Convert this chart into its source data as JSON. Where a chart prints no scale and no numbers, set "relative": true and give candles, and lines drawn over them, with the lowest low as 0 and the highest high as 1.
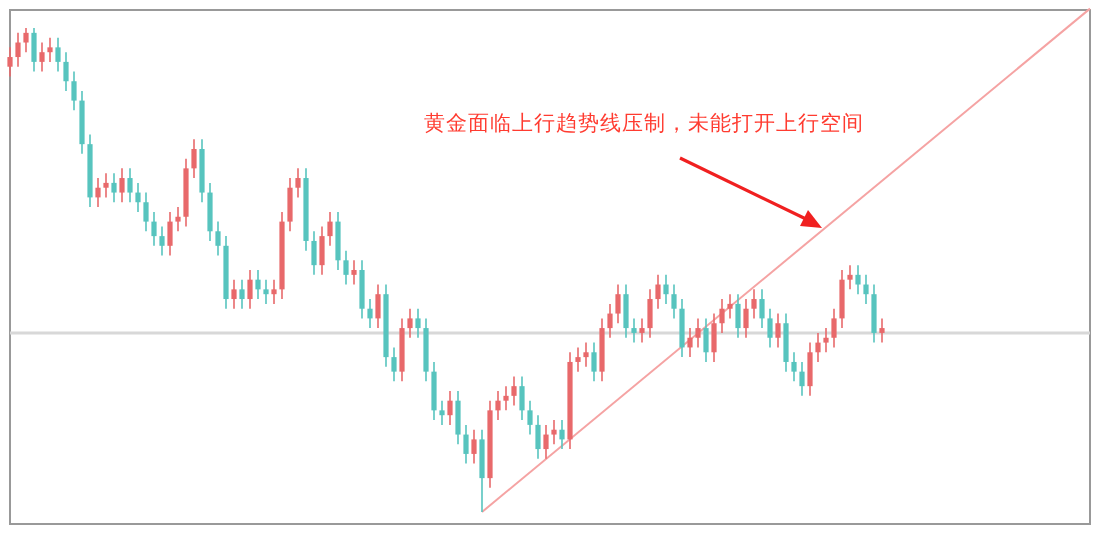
{
  "chart_data": {
    "type": "candlestick",
    "relative": true,
    "categories": [
      null,
      null,
      null,
      null,
      null,
      null,
      null,
      null,
      null,
      null,
      null,
      null,
      null,
      null,
      null,
      null,
      null,
      null,
      null,
      null,
      null,
      null,
      null,
      null,
      null,
      null,
      null,
      null,
      null,
      null,
      null,
      null,
      null,
      null,
      null,
      null,
      null,
      null,
      null,
      null,
      null,
      null,
      null,
      null,
      null,
      null,
      null,
      null,
      null,
      null,
      null,
      null,
      null,
      null,
      null,
      null,
      null,
      null,
      null,
      null,
      null,
      null,
      null,
      null,
      null,
      null,
      null,
      null,
      null,
      null,
      null,
      null,
      null,
      null,
      null,
      null,
      null,
      null,
      null,
      null,
      null,
      null,
      null,
      null,
      null,
      null,
      null,
      null,
      null,
      null,
      null,
      null,
      null,
      null,
      null,
      null,
      null,
      null,
      null,
      null,
      null,
      null,
      null,
      null,
      null,
      null,
      null,
      null,
      null,
      null,
      null,
      null,
      null,
      null,
      null,
      null,
      null,
      null,
      null,
      null,
      null,
      null,
      null,
      null,
      null,
      null,
      null,
      null,
      null,
      null,
      null,
      null,
      null,
      null,
      null,
      null
    ],
    "ohlc": [
      [
        0.92,
        0.96,
        0.9,
        0.94
      ],
      [
        0.94,
        0.99,
        0.92,
        0.97
      ],
      [
        0.97,
        1,
        0.95,
        0.99
      ],
      [
        0.99,
        1,
        0.91,
        0.93
      ],
      [
        0.93,
        0.97,
        0.91,
        0.95
      ],
      [
        0.95,
        0.98,
        0.93,
        0.96
      ],
      [
        0.96,
        0.98,
        0.91,
        0.93
      ],
      [
        0.93,
        0.95,
        0.87,
        0.89
      ],
      [
        0.89,
        0.91,
        0.83,
        0.85
      ],
      [
        0.85,
        0.87,
        0.74,
        0.76
      ],
      [
        0.76,
        0.78,
        0.63,
        0.65
      ],
      [
        0.65,
        0.69,
        0.63,
        0.67
      ],
      [
        0.67,
        0.7,
        0.65,
        0.68
      ],
      [
        0.68,
        0.7,
        0.64,
        0.66
      ],
      [
        0.66,
        0.71,
        0.64,
        0.69
      ],
      [
        0.69,
        0.71,
        0.64,
        0.66
      ],
      [
        0.66,
        0.68,
        0.62,
        0.64
      ],
      [
        0.64,
        0.66,
        0.58,
        0.6
      ],
      [
        0.6,
        0.62,
        0.55,
        0.57
      ],
      [
        0.57,
        0.59,
        0.53,
        0.55
      ],
      [
        0.55,
        0.62,
        0.53,
        0.6
      ],
      [
        0.6,
        0.63,
        0.58,
        0.61
      ],
      [
        0.61,
        0.73,
        0.59,
        0.71
      ],
      [
        0.71,
        0.77,
        0.69,
        0.75
      ],
      [
        0.75,
        0.77,
        0.64,
        0.66
      ],
      [
        0.66,
        0.68,
        0.56,
        0.58
      ],
      [
        0.58,
        0.6,
        0.53,
        0.55
      ],
      [
        0.55,
        0.57,
        0.42,
        0.44
      ],
      [
        0.44,
        0.48,
        0.42,
        0.46
      ],
      [
        0.46,
        0.48,
        0.42,
        0.44
      ],
      [
        0.44,
        0.5,
        0.42,
        0.48
      ],
      [
        0.48,
        0.5,
        0.44,
        0.46
      ],
      [
        0.46,
        0.48,
        0.43,
        0.45
      ],
      [
        0.45,
        0.48,
        0.43,
        0.46
      ],
      [
        0.46,
        0.62,
        0.44,
        0.6
      ],
      [
        0.6,
        0.69,
        0.58,
        0.67
      ],
      [
        0.67,
        0.71,
        0.65,
        0.69
      ],
      [
        0.69,
        0.71,
        0.54,
        0.56
      ],
      [
        0.56,
        0.58,
        0.49,
        0.51
      ],
      [
        0.51,
        0.59,
        0.49,
        0.57
      ],
      [
        0.57,
        0.62,
        0.55,
        0.6
      ],
      [
        0.6,
        0.62,
        0.5,
        0.52
      ],
      [
        0.52,
        0.54,
        0.47,
        0.49
      ],
      [
        0.49,
        0.52,
        0.47,
        0.5
      ],
      [
        0.5,
        0.52,
        0.4,
        0.42
      ],
      [
        0.42,
        0.44,
        0.38,
        0.4
      ],
      [
        0.4,
        0.47,
        0.38,
        0.45
      ],
      [
        0.45,
        0.47,
        0.3,
        0.32
      ],
      [
        0.32,
        0.34,
        0.27,
        0.29
      ],
      [
        0.29,
        0.4,
        0.27,
        0.38
      ],
      [
        0.38,
        0.42,
        0.36,
        0.4
      ],
      [
        0.4,
        0.42,
        0.36,
        0.38
      ],
      [
        0.38,
        0.4,
        0.27,
        0.29
      ],
      [
        0.29,
        0.31,
        0.19,
        0.21
      ],
      [
        0.21,
        0.23,
        0.18,
        0.2
      ],
      [
        0.2,
        0.25,
        0.18,
        0.23
      ],
      [
        0.23,
        0.25,
        0.14,
        0.16
      ],
      [
        0.16,
        0.18,
        0.1,
        0.12
      ],
      [
        0.12,
        0.17,
        0.1,
        0.15
      ],
      [
        0.15,
        0.17,
        0,
        0.07
      ],
      [
        0.07,
        0.23,
        0.05,
        0.21
      ],
      [
        0.21,
        0.25,
        0.19,
        0.23
      ],
      [
        0.23,
        0.26,
        0.21,
        0.24
      ],
      [
        0.24,
        0.28,
        0.22,
        0.26
      ],
      [
        0.26,
        0.28,
        0.19,
        0.21
      ],
      [
        0.21,
        0.23,
        0.16,
        0.18
      ],
      [
        0.18,
        0.2,
        0.11,
        0.13
      ],
      [
        0.13,
        0.18,
        0.11,
        0.16
      ],
      [
        0.16,
        0.19,
        0.14,
        0.17
      ],
      [
        0.17,
        0.19,
        0.13,
        0.15
      ],
      [
        0.15,
        0.33,
        0.13,
        0.31
      ],
      [
        0.31,
        0.34,
        0.29,
        0.32
      ],
      [
        0.32,
        0.35,
        0.3,
        0.33
      ],
      [
        0.33,
        0.35,
        0.27,
        0.29
      ],
      [
        0.29,
        0.4,
        0.27,
        0.38
      ],
      [
        0.38,
        0.43,
        0.36,
        0.41
      ],
      [
        0.41,
        0.47,
        0.39,
        0.45
      ],
      [
        0.45,
        0.47,
        0.36,
        0.38
      ],
      [
        0.38,
        0.4,
        0.35,
        0.37
      ],
      [
        0.37,
        0.4,
        0.35,
        0.38
      ],
      [
        0.38,
        0.46,
        0.36,
        0.44
      ],
      [
        0.44,
        0.49,
        0.42,
        0.47
      ],
      [
        0.47,
        0.49,
        0.43,
        0.45
      ],
      [
        0.45,
        0.47,
        0.4,
        0.42
      ],
      [
        0.42,
        0.44,
        0.32,
        0.34
      ],
      [
        0.34,
        0.38,
        0.32,
        0.36
      ],
      [
        0.36,
        0.4,
        0.34,
        0.38
      ],
      [
        0.38,
        0.4,
        0.31,
        0.33
      ],
      [
        0.33,
        0.41,
        0.31,
        0.39
      ],
      [
        0.39,
        0.44,
        0.37,
        0.42
      ],
      [
        0.42,
        0.45,
        0.4,
        0.43
      ],
      [
        0.43,
        0.45,
        0.36,
        0.38
      ],
      [
        0.38,
        0.44,
        0.36,
        0.42
      ],
      [
        0.42,
        0.46,
        0.4,
        0.44
      ],
      [
        0.44,
        0.46,
        0.38,
        0.4
      ],
      [
        0.4,
        0.42,
        0.34,
        0.36
      ],
      [
        0.36,
        0.41,
        0.34,
        0.39
      ],
      [
        0.39,
        0.41,
        0.29,
        0.31
      ],
      [
        0.31,
        0.33,
        0.27,
        0.29
      ],
      [
        0.29,
        0.31,
        0.24,
        0.26
      ],
      [
        0.26,
        0.35,
        0.24,
        0.33
      ],
      [
        0.33,
        0.37,
        0.31,
        0.35
      ],
      [
        0.35,
        0.38,
        0.33,
        0.36
      ],
      [
        0.36,
        0.42,
        0.34,
        0.4
      ],
      [
        0.4,
        0.5,
        0.38,
        0.48
      ],
      [
        0.48,
        0.51,
        0.46,
        0.49
      ],
      [
        0.49,
        0.51,
        0.45,
        0.47
      ],
      [
        0.47,
        0.49,
        0.43,
        0.45
      ],
      [
        0.45,
        0.47,
        0.35,
        0.37
      ],
      [
        0.37,
        0.4,
        0.35,
        0.38
      ],
      null,
      null,
      null,
      null,
      null,
      null,
      null,
      null,
      null,
      null,
      null,
      null,
      null,
      null,
      null,
      null,
      null,
      null,
      null,
      null,
      null,
      null,
      null,
      null,
      null,
      null
    ],
    "colors": [
      "#e8696b",
      "#e8696b",
      "#e8696b",
      "#57c4be",
      "#e8696b",
      "#e8696b",
      "#57c4be",
      "#57c4be",
      "#57c4be",
      "#57c4be",
      "#57c4be",
      "#e8696b",
      "#e8696b",
      "#57c4be",
      "#e8696b",
      "#57c4be",
      "#57c4be",
      "#57c4be",
      "#57c4be",
      "#57c4be",
      "#e8696b",
      "#e8696b",
      "#e8696b",
      "#e8696b",
      "#57c4be",
      "#57c4be",
      "#57c4be",
      "#57c4be",
      "#e8696b",
      "#57c4be",
      "#e8696b",
      "#57c4be",
      "#57c4be",
      "#e8696b",
      "#e8696b",
      "#e8696b",
      "#e8696b",
      "#57c4be",
      "#57c4be",
      "#e8696b",
      "#e8696b",
      "#57c4be",
      "#57c4be",
      "#e8696b",
      "#57c4be",
      "#57c4be",
      "#e8696b",
      "#57c4be",
      "#57c4be",
      "#e8696b",
      "#e8696b",
      "#57c4be",
      "#57c4be",
      "#57c4be",
      "#57c4be",
      "#e8696b",
      "#57c4be",
      "#57c4be",
      "#e8696b",
      "#57c4be",
      "#e8696b",
      "#e8696b",
      "#e8696b",
      "#e8696b",
      "#57c4be",
      "#57c4be",
      "#57c4be",
      "#e8696b",
      "#e8696b",
      "#57c4be",
      "#e8696b",
      "#e8696b",
      "#e8696b",
      "#57c4be",
      "#e8696b",
      "#e8696b",
      "#e8696b",
      "#57c4be",
      "#57c4be",
      "#e8696b",
      "#e8696b",
      "#e8696b",
      "#57c4be",
      "#57c4be",
      "#57c4be",
      "#e8696b",
      "#e8696b",
      "#57c4be",
      "#e8696b",
      "#e8696b",
      "#e8696b",
      "#57c4be",
      "#e8696b",
      "#e8696b",
      "#57c4be",
      "#57c4be",
      "#e8696b",
      "#57c4be",
      "#57c4be",
      "#57c4be",
      "#e8696b",
      "#e8696b",
      "#e8696b",
      "#e8696b",
      "#e8696b",
      "#e8696b",
      "#57c4be",
      "#57c4be",
      "#57c4be",
      "#e8696b",
      null,
      null,
      null,
      null,
      null,
      null,
      null,
      null,
      null,
      null,
      null,
      null,
      null,
      null,
      null,
      null,
      null,
      null,
      null,
      null,
      null,
      null,
      null,
      null,
      null,
      null
    ],
    "series": [
      {
        "type": "line",
        "color": "#f5a3a3",
        "values": [
          null,
          null,
          null,
          null,
          null,
          null,
          null,
          null,
          null,
          null,
          null,
          null,
          null,
          null,
          null,
          null,
          null,
          null,
          null,
          null,
          null,
          null,
          null,
          null,
          null,
          null,
          null,
          null,
          null,
          null,
          null,
          null,
          null,
          null,
          null,
          null,
          null,
          null,
          null,
          null,
          null,
          null,
          null,
          null,
          null,
          null,
          null,
          null,
          null,
          null,
          null,
          null,
          null,
          null,
          null,
          null,
          null,
          null,
          null,
          0,
          null,
          null,
          null,
          null,
          null,
          null,
          null,
          null,
          null,
          null,
          null,
          null,
          null,
          null,
          null,
          null,
          null,
          null,
          null,
          null,
          null,
          null,
          null,
          null,
          null,
          null,
          null,
          null,
          null,
          null,
          null,
          null,
          null,
          null,
          null,
          null,
          null,
          null,
          null,
          null,
          null,
          null,
          null,
          null,
          null,
          null,
          null,
          null,
          null,
          null,
          null,
          null,
          null,
          null,
          null,
          null,
          null,
          null,
          null,
          null,
          null,
          null,
          null,
          null,
          null,
          null,
          null,
          null,
          null,
          null,
          null,
          null,
          null,
          null,
          null,
          1.04
        ]
      }
    ],
    "ref_lines": [
      {
        "axis": "y",
        "value": 0.37,
        "color": "#d8d8d8"
      }
    ],
    "annotations": [
      "黄金面临上行趋势线压制，未能打开上行空间"
    ]
  }
}
